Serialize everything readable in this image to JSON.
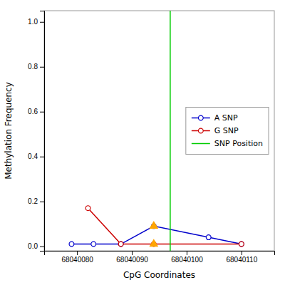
{
  "chart_data": {
    "type": "line",
    "xlabel": "CpG Coordinates",
    "ylabel": "Methylation Frequency",
    "xlim": [
      68040074,
      68040116
    ],
    "xticks": [
      68040080,
      68040090,
      68040100,
      68040110
    ],
    "ylim": [
      -0.02,
      1.05
    ],
    "yticks": [
      {
        "value": 0.0,
        "label": "0.0"
      },
      0.2,
      0.4,
      0.6,
      0.8,
      {
        "value": 1.0,
        "label": "1.0"
      }
    ],
    "grid": false,
    "legend": "right",
    "series": [
      {
        "name": "A SNP",
        "type": "line",
        "color": "#0000cc",
        "marker": "circle",
        "x": [
          68040079,
          68040083,
          68040088,
          68040094,
          68040104,
          68040110
        ],
        "values": [
          0.01,
          0.01,
          0.01,
          0.09,
          0.04,
          0.01
        ]
      },
      {
        "name": "G SNP",
        "type": "line",
        "color": "#cc0000",
        "marker": "circle",
        "x": [
          68040082,
          68040088,
          68040094,
          68040110
        ],
        "values": [
          0.17,
          0.01,
          0.01,
          0.01
        ]
      },
      {
        "name": "SNP Position",
        "type": "vline",
        "color": "#00cc00",
        "x": [
          68040097
        ]
      },
      {
        "type": "scatter",
        "color": "#FFA500",
        "marker": "triangle",
        "x": [
          68040094,
          68040094
        ],
        "values": [
          0.09,
          0.01
        ]
      }
    ]
  }
}
